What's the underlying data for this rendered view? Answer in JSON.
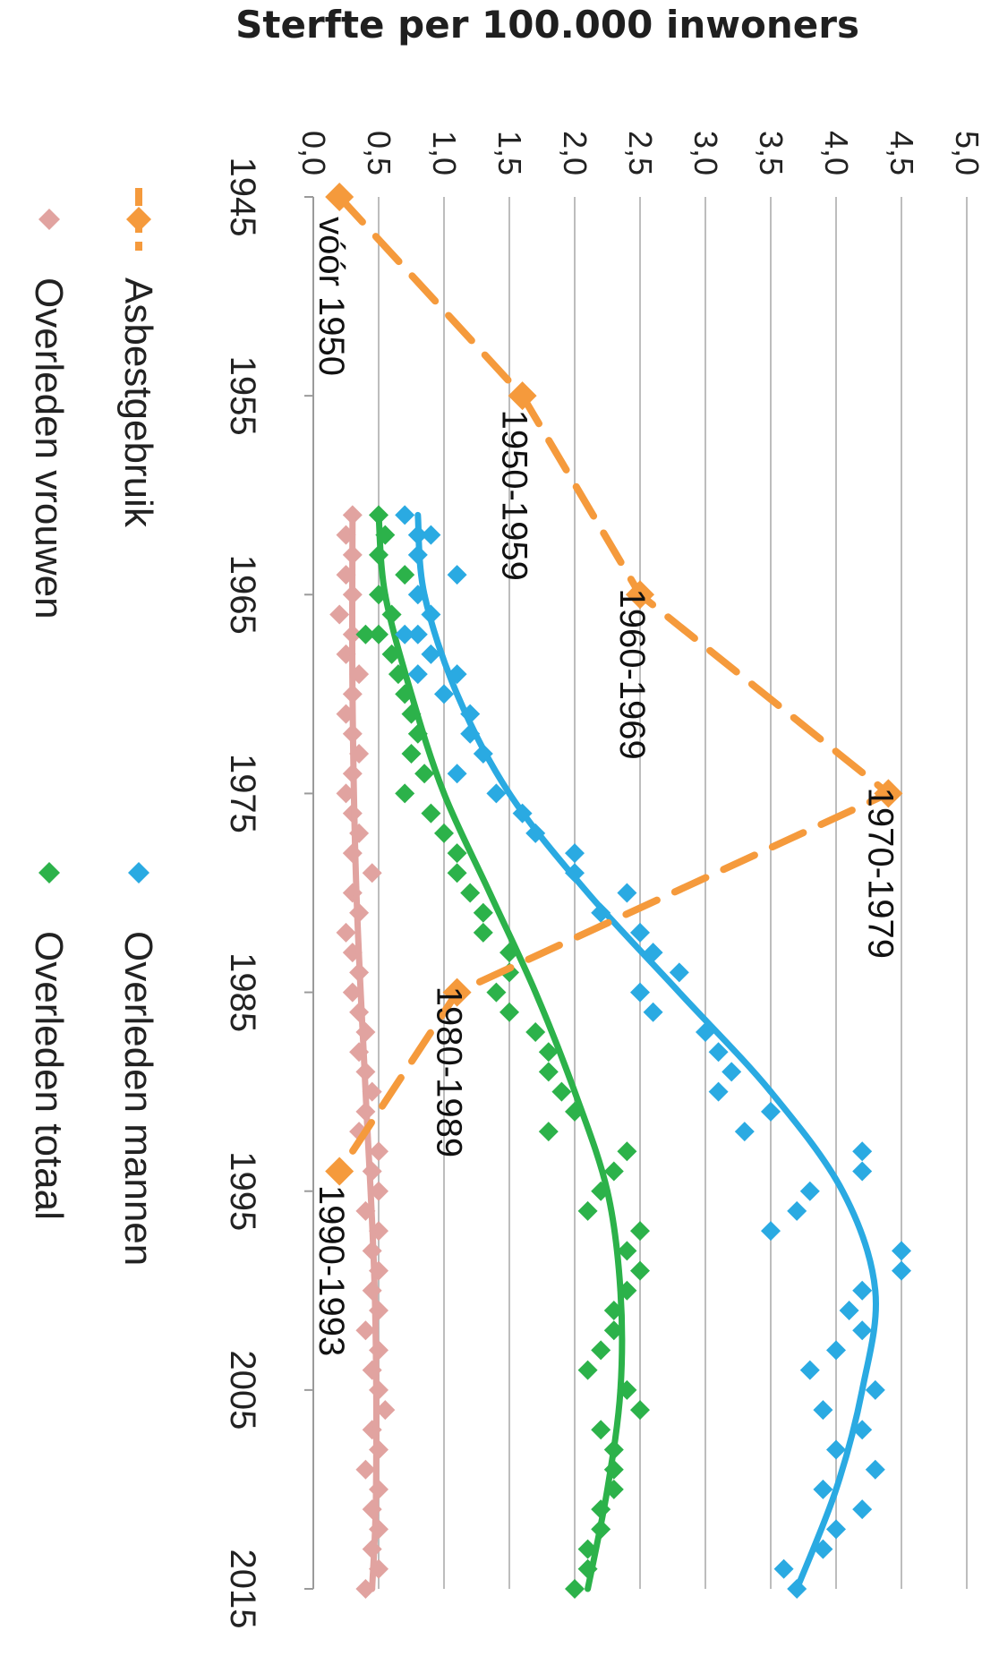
{
  "chart_data": {
    "type": "scatter",
    "title": "Sterfte per 100.000 inwoners",
    "xlabel": "",
    "ylabel": "",
    "xlim": [
      1945,
      2015
    ],
    "ylim": [
      0,
      5
    ],
    "x_ticks": [
      "1945",
      "1955",
      "1965",
      "1975",
      "1985",
      "1995",
      "2005",
      "2015"
    ],
    "y_ticks": [
      "0,0",
      "0,5",
      "1,0",
      "1,5",
      "2,0",
      "2,5",
      "3,0",
      "3,5",
      "4,0",
      "4,5",
      "5,0"
    ],
    "grid": "horizontal",
    "orientation": "rotated 90 degrees clockwise",
    "series": [
      {
        "name": "Asbestgebruik",
        "kind": "line-dashed-markers",
        "color": "#f59a3c",
        "points": [
          [
            1945,
            0.2
          ],
          [
            1955,
            1.6
          ],
          [
            1965,
            2.5
          ],
          [
            1975,
            4.4
          ],
          [
            1985,
            1.1
          ],
          [
            1994,
            0.2
          ]
        ],
        "labels": [
          "vóór 1950",
          "1950-1959",
          "1960-1969",
          "1970-1979",
          "1980-1989",
          "1990-1993"
        ]
      },
      {
        "name": "Overleden mannen",
        "kind": "scatter-with-trend",
        "color": "#2aaae2",
        "points": [
          [
            1961,
            0.7
          ],
          [
            1962,
            0.8
          ],
          [
            1962,
            0.9
          ],
          [
            1963,
            0.8
          ],
          [
            1964,
            1.1
          ],
          [
            1965,
            0.8
          ],
          [
            1966,
            0.9
          ],
          [
            1967,
            0.8
          ],
          [
            1967,
            0.7
          ],
          [
            1968,
            0.9
          ],
          [
            1969,
            0.8
          ],
          [
            1969,
            1.1
          ],
          [
            1970,
            1.0
          ],
          [
            1971,
            1.2
          ],
          [
            1972,
            1.2
          ],
          [
            1973,
            1.3
          ],
          [
            1974,
            1.1
          ],
          [
            1975,
            1.4
          ],
          [
            1976,
            1.6
          ],
          [
            1977,
            1.7
          ],
          [
            1978,
            2.0
          ],
          [
            1979,
            2.0
          ],
          [
            1980,
            2.4
          ],
          [
            1981,
            2.2
          ],
          [
            1982,
            2.5
          ],
          [
            1983,
            2.6
          ],
          [
            1984,
            2.8
          ],
          [
            1985,
            2.5
          ],
          [
            1986,
            2.6
          ],
          [
            1987,
            3.0
          ],
          [
            1988,
            3.1
          ],
          [
            1989,
            3.2
          ],
          [
            1990,
            3.1
          ],
          [
            1991,
            3.5
          ],
          [
            1992,
            3.3
          ],
          [
            1993,
            4.2
          ],
          [
            1994,
            4.2
          ],
          [
            1995,
            3.8
          ],
          [
            1996,
            3.7
          ],
          [
            1997,
            3.5
          ],
          [
            1998,
            4.5
          ],
          [
            1999,
            4.5
          ],
          [
            2000,
            4.2
          ],
          [
            2001,
            4.1
          ],
          [
            2002,
            4.2
          ],
          [
            2003,
            4.0
          ],
          [
            2004,
            3.8
          ],
          [
            2005,
            4.3
          ],
          [
            2006,
            3.9
          ],
          [
            2007,
            4.2
          ],
          [
            2008,
            4.0
          ],
          [
            2009,
            4.3
          ],
          [
            2010,
            3.9
          ],
          [
            2011,
            4.2
          ],
          [
            2012,
            4.0
          ],
          [
            2013,
            3.9
          ],
          [
            2014,
            3.6
          ],
          [
            2015,
            3.7
          ]
        ],
        "trend": [
          [
            1961,
            0.8
          ],
          [
            1965,
            0.85
          ],
          [
            1970,
            1.1
          ],
          [
            1975,
            1.5
          ],
          [
            1980,
            2.1
          ],
          [
            1985,
            2.8
          ],
          [
            1990,
            3.5
          ],
          [
            1995,
            4.05
          ],
          [
            2000,
            4.3
          ],
          [
            2005,
            4.2
          ],
          [
            2010,
            4.0
          ],
          [
            2015,
            3.7
          ]
        ]
      },
      {
        "name": "Overleden vrouwen",
        "kind": "scatter-with-trend",
        "color": "#e1a3a0",
        "points": [
          [
            1961,
            0.3
          ],
          [
            1962,
            0.25
          ],
          [
            1963,
            0.3
          ],
          [
            1964,
            0.25
          ],
          [
            1965,
            0.3
          ],
          [
            1966,
            0.2
          ],
          [
            1967,
            0.3
          ],
          [
            1968,
            0.25
          ],
          [
            1969,
            0.35
          ],
          [
            1970,
            0.3
          ],
          [
            1971,
            0.25
          ],
          [
            1972,
            0.3
          ],
          [
            1973,
            0.35
          ],
          [
            1974,
            0.3
          ],
          [
            1975,
            0.25
          ],
          [
            1976,
            0.3
          ],
          [
            1977,
            0.35
          ],
          [
            1978,
            0.3
          ],
          [
            1979,
            0.45
          ],
          [
            1980,
            0.3
          ],
          [
            1981,
            0.35
          ],
          [
            1982,
            0.25
          ],
          [
            1983,
            0.3
          ],
          [
            1984,
            0.35
          ],
          [
            1985,
            0.3
          ],
          [
            1986,
            0.35
          ],
          [
            1987,
            0.4
          ],
          [
            1988,
            0.35
          ],
          [
            1989,
            0.4
          ],
          [
            1990,
            0.45
          ],
          [
            1991,
            0.4
          ],
          [
            1992,
            0.35
          ],
          [
            1993,
            0.5
          ],
          [
            1994,
            0.45
          ],
          [
            1995,
            0.5
          ],
          [
            1996,
            0.4
          ],
          [
            1997,
            0.5
          ],
          [
            1998,
            0.45
          ],
          [
            1999,
            0.5
          ],
          [
            2000,
            0.45
          ],
          [
            2001,
            0.5
          ],
          [
            2002,
            0.4
          ],
          [
            2003,
            0.5
          ],
          [
            2004,
            0.45
          ],
          [
            2005,
            0.5
          ],
          [
            2006,
            0.55
          ],
          [
            2007,
            0.45
          ],
          [
            2008,
            0.5
          ],
          [
            2009,
            0.4
          ],
          [
            2010,
            0.5
          ],
          [
            2011,
            0.45
          ],
          [
            2012,
            0.5
          ],
          [
            2013,
            0.45
          ],
          [
            2014,
            0.5
          ],
          [
            2015,
            0.4
          ]
        ],
        "trend": [
          [
            1961,
            0.3
          ],
          [
            1970,
            0.3
          ],
          [
            1980,
            0.33
          ],
          [
            1990,
            0.4
          ],
          [
            2000,
            0.47
          ],
          [
            2010,
            0.48
          ],
          [
            2015,
            0.45
          ]
        ]
      },
      {
        "name": "Overleden totaal",
        "kind": "scatter-with-trend",
        "color": "#2cb24a",
        "points": [
          [
            1961,
            0.5
          ],
          [
            1962,
            0.55
          ],
          [
            1963,
            0.5
          ],
          [
            1964,
            0.7
          ],
          [
            1965,
            0.5
          ],
          [
            1966,
            0.6
          ],
          [
            1967,
            0.4
          ],
          [
            1967,
            0.5
          ],
          [
            1968,
            0.6
          ],
          [
            1969,
            0.65
          ],
          [
            1970,
            0.7
          ],
          [
            1971,
            0.75
          ],
          [
            1972,
            0.8
          ],
          [
            1973,
            0.75
          ],
          [
            1974,
            0.85
          ],
          [
            1975,
            0.7
          ],
          [
            1976,
            0.9
          ],
          [
            1977,
            1.0
          ],
          [
            1978,
            1.1
          ],
          [
            1979,
            1.1
          ],
          [
            1980,
            1.2
          ],
          [
            1981,
            1.3
          ],
          [
            1982,
            1.3
          ],
          [
            1983,
            1.5
          ],
          [
            1984,
            1.5
          ],
          [
            1985,
            1.4
          ],
          [
            1986,
            1.5
          ],
          [
            1987,
            1.7
          ],
          [
            1988,
            1.8
          ],
          [
            1989,
            1.8
          ],
          [
            1990,
            1.9
          ],
          [
            1991,
            2.0
          ],
          [
            1992,
            1.8
          ],
          [
            1993,
            2.4
          ],
          [
            1994,
            2.3
          ],
          [
            1995,
            2.2
          ],
          [
            1996,
            2.1
          ],
          [
            1997,
            2.5
          ],
          [
            1998,
            2.4
          ],
          [
            1999,
            2.5
          ],
          [
            2000,
            2.4
          ],
          [
            2001,
            2.3
          ],
          [
            2002,
            2.3
          ],
          [
            2003,
            2.2
          ],
          [
            2004,
            2.1
          ],
          [
            2005,
            2.4
          ],
          [
            2006,
            2.5
          ],
          [
            2007,
            2.2
          ],
          [
            2008,
            2.3
          ],
          [
            2009,
            2.3
          ],
          [
            2010,
            2.3
          ],
          [
            2011,
            2.2
          ],
          [
            2012,
            2.2
          ],
          [
            2013,
            2.1
          ],
          [
            2014,
            2.1
          ],
          [
            2015,
            2.0
          ]
        ],
        "trend": [
          [
            1961,
            0.5
          ],
          [
            1965,
            0.55
          ],
          [
            1970,
            0.75
          ],
          [
            1975,
            1.0
          ],
          [
            1980,
            1.35
          ],
          [
            1985,
            1.7
          ],
          [
            1990,
            2.0
          ],
          [
            1995,
            2.25
          ],
          [
            2000,
            2.35
          ],
          [
            2005,
            2.35
          ],
          [
            2010,
            2.25
          ],
          [
            2015,
            2.1
          ]
        ]
      }
    ],
    "legend": {
      "placement": "bottom (left edge in rotated view)",
      "entries": [
        "Asbestgebruik",
        "Overleden mannen",
        "Overleden vrouwen",
        "Overleden totaal"
      ]
    }
  }
}
